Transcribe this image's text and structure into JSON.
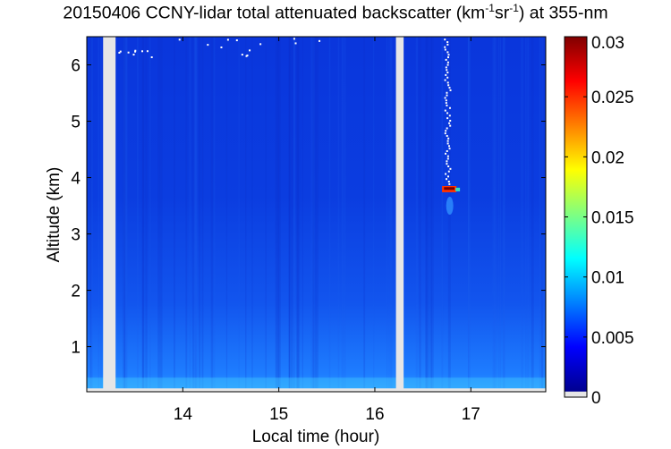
{
  "chart_data": {
    "type": "heatmap",
    "title": {
      "prefix": "20150406 CCNY-lidar total attenuated backscatter (km",
      "sup1": "-1",
      "mid": "sr",
      "sup2": "-1",
      "suffix": ") at 355-nm"
    },
    "xlabel": "Local time (hour)",
    "ylabel": "Altitude (km)",
    "xlim": [
      13.0,
      17.78
    ],
    "ylim": [
      0.2,
      6.5
    ],
    "x_ticks": [
      14,
      15,
      16,
      17
    ],
    "y_ticks": [
      1,
      2,
      3,
      4,
      5,
      6
    ],
    "colorbar": {
      "range": [
        0,
        0.03
      ],
      "ticks": [
        0,
        0.005,
        0.01,
        0.015,
        0.02,
        0.025,
        0.03
      ],
      "tick_labels": [
        "0",
        "0.005",
        "0.01",
        "0.015",
        "0.02",
        "0.025",
        "0.03"
      ],
      "colormap": "jet",
      "colors": [
        "#e6e6e6",
        "#00008f",
        "#0000ff",
        "#0080ff",
        "#00ffff",
        "#80ff80",
        "#ffff00",
        "#ff8000",
        "#ff0000",
        "#800000"
      ]
    },
    "data_gaps_hours": [
      [
        13.17,
        13.3
      ],
      [
        16.22,
        16.3
      ]
    ],
    "background_levels": [
      {
        "altitude_km": 0.3,
        "value": 0.0075
      },
      {
        "altitude_km": 0.6,
        "value": 0.006
      },
      {
        "altitude_km": 1.5,
        "value": 0.005
      },
      {
        "altitude_km": 3.0,
        "value": 0.0035
      },
      {
        "altitude_km": 6.5,
        "value": 0.003
      }
    ],
    "features": [
      {
        "name": "cloud-layer",
        "time_hours": [
          16.7,
          16.85
        ],
        "altitude_km": 3.8,
        "peak_value": 0.03
      },
      {
        "name": "virga-column",
        "time_hours": [
          16.72,
          16.78
        ],
        "altitude_km": [
          3.9,
          6.5
        ],
        "value": 0.0
      }
    ]
  }
}
